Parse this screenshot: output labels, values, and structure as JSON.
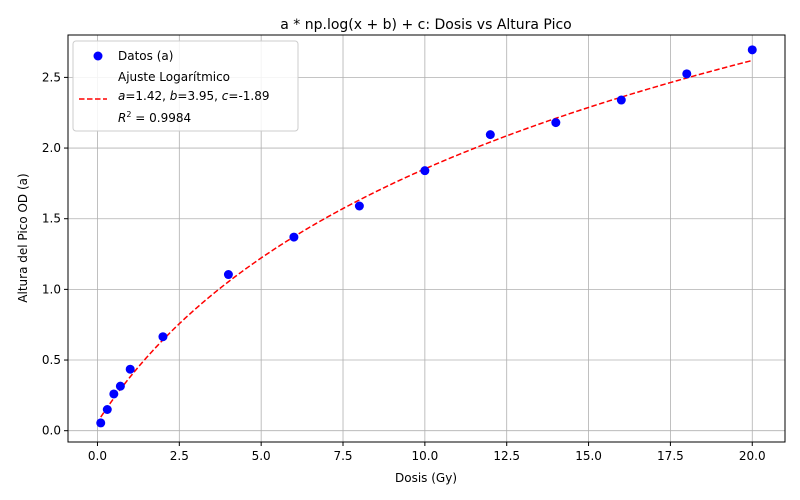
{
  "chart_data": {
    "type": "scatter",
    "title": "a * np.log(x + b) + c: Dosis vs Altura Pico",
    "xlabel": "Dosis (Gy)",
    "ylabel": "Altura del Pico OD (a)",
    "xlim": [
      -0.9,
      21.0
    ],
    "ylim": [
      -0.08,
      2.8
    ],
    "xticks": [
      0.0,
      2.5,
      5.0,
      7.5,
      10.0,
      12.5,
      15.0,
      17.5,
      20.0
    ],
    "xtick_labels": [
      "0.0",
      "2.5",
      "5.0",
      "7.5",
      "10.0",
      "12.5",
      "15.0",
      "17.5",
      "20.0"
    ],
    "yticks": [
      0.0,
      0.5,
      1.0,
      1.5,
      2.0,
      2.5
    ],
    "ytick_labels": [
      "0.0",
      "0.5",
      "1.0",
      "1.5",
      "2.0",
      "2.5"
    ],
    "grid": true,
    "legend_position": "top-left",
    "series": [
      {
        "name": "Datos (a)",
        "kind": "scatter",
        "color": "#0000ff",
        "x": [
          0.1,
          0.3,
          0.5,
          0.7,
          1.0,
          2.0,
          4.0,
          6.0,
          8.0,
          10.0,
          12.0,
          14.0,
          16.0,
          18.0,
          20.0
        ],
        "y": [
          0.055,
          0.15,
          0.26,
          0.315,
          0.435,
          0.665,
          1.105,
          1.37,
          1.59,
          1.84,
          2.095,
          2.18,
          2.34,
          2.525,
          2.695
        ]
      },
      {
        "name": "Ajuste Logarítmico",
        "kind": "fit",
        "color": "#ff0000",
        "dash": "dashed",
        "params": {
          "a": 1.42,
          "b": 3.95,
          "c": -1.89
        },
        "x_range": [
          0.1,
          20.0
        ]
      }
    ],
    "legend": {
      "entries": [
        {
          "label": "Datos (a)"
        },
        {
          "label": "Ajuste Logarítmico"
        },
        {
          "label_prefix": "",
          "a_sym": "a",
          "a_val": "=1.42, ",
          "b_sym": "b",
          "b_val": "=3.95, ",
          "c_sym": "c",
          "c_val": "=-1.89"
        },
        {
          "r_sym": "R",
          "r_sup": "2",
          "r_val": " = 0.9984"
        }
      ]
    }
  }
}
